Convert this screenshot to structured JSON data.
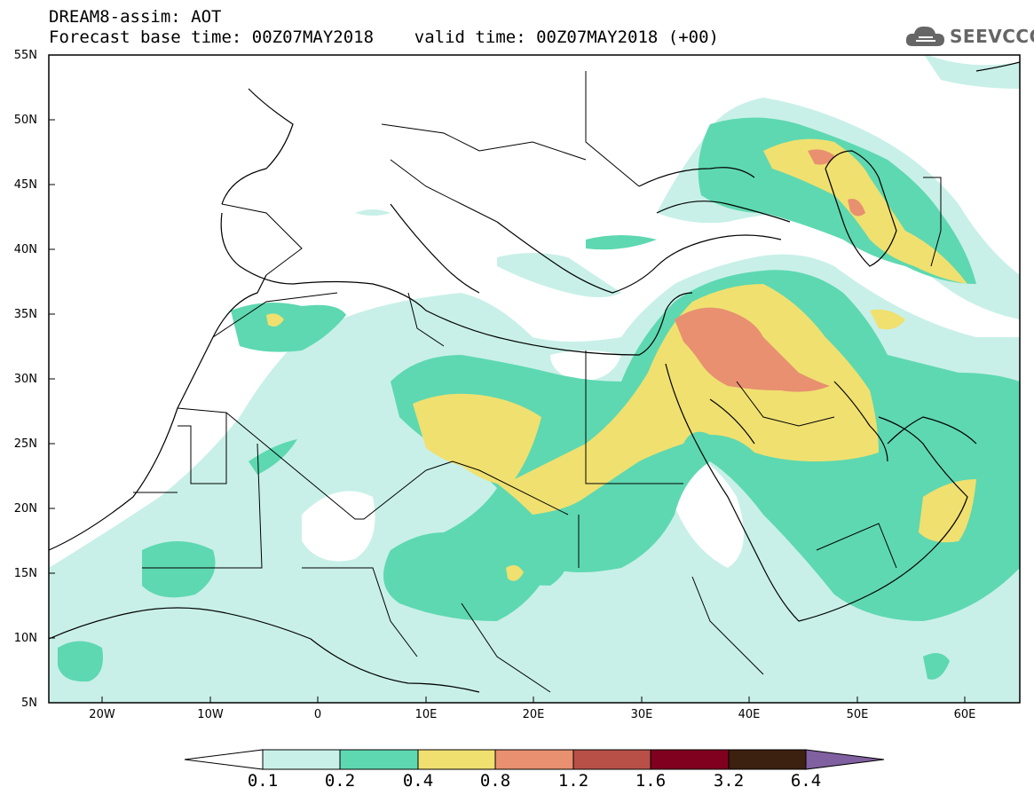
{
  "title": {
    "line1": "DREAM8-assim: AOT",
    "line2": "Forecast base time: 00Z07MAY2018    valid time: 00Z07MAY2018 (+00)"
  },
  "logo": {
    "text": "SEEVCCC",
    "icon": "cloud-icon"
  },
  "map": {
    "lat_labels": [
      "55N",
      "50N",
      "45N",
      "40N",
      "35N",
      "30N",
      "25N",
      "20N",
      "15N",
      "10N",
      "5N"
    ],
    "lon_labels": [
      "20W",
      "10W",
      "0",
      "10E",
      "20E",
      "30E",
      "40E",
      "50E",
      "60E"
    ],
    "lat_range": [
      5,
      55
    ],
    "lon_range": [
      -25,
      65
    ],
    "variable": "AOT"
  },
  "colorbar": {
    "levels": [
      "0.1",
      "0.2",
      "0.4",
      "0.8",
      "1.2",
      "1.6",
      "3.2",
      "6.4"
    ],
    "colors": [
      "#ffffff",
      "#c8f0e8",
      "#5ed8b0",
      "#f0e070",
      "#e89070",
      "#b85048",
      "#800020",
      "#3c2010",
      "#8060a0"
    ]
  }
}
